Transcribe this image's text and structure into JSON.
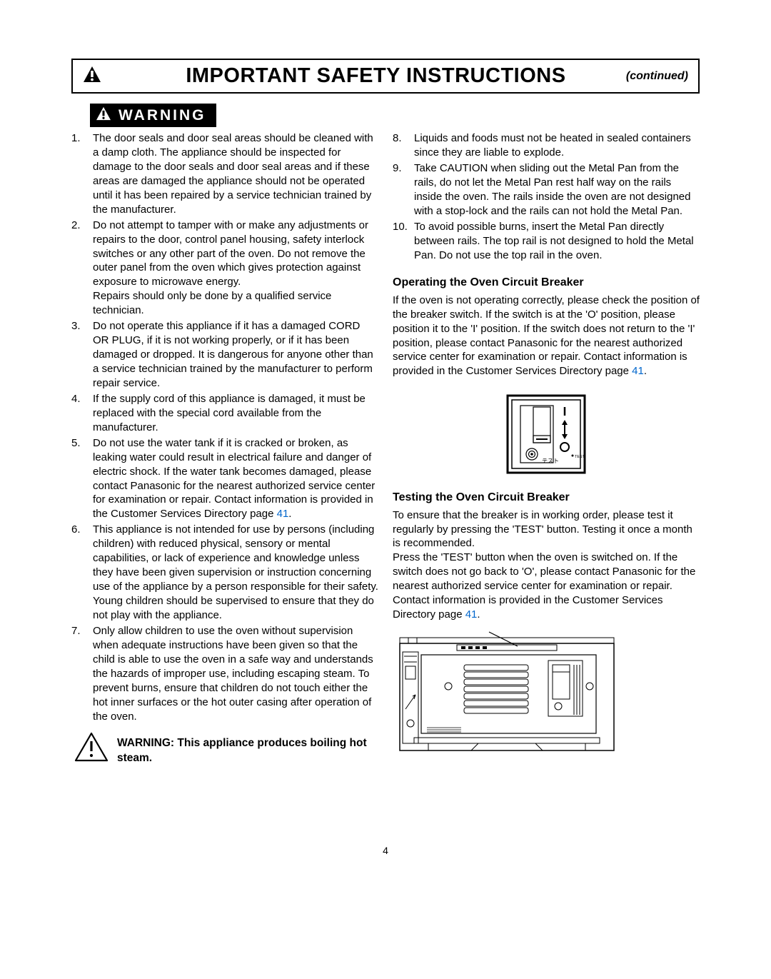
{
  "header": {
    "title": "IMPORTANT SAFETY INSTRUCTIONS",
    "continued": "(continued)"
  },
  "warning_badge": "WARNING",
  "left_list": [
    "The door seals and door seal areas should be cleaned with a damp cloth. The appliance should be inspected for damage to the door seals and door seal areas and if these areas are damaged the appliance should not be operated until it has been repaired by a service technician trained by the manufacturer.",
    "Do not attempt to tamper with or make any adjustments or repairs to the door, control panel housing, safety interlock switches or any other part of the oven. Do not remove the outer panel from the oven which gives protection against exposure to microwave energy.\nRepairs should only be done by a qualified service technician.",
    "Do not operate this appliance if it has a damaged CORD OR PLUG, if it is not working properly, or if it has been damaged or dropped. It is dangerous for anyone other than a service technician trained by the manufacturer to perform repair service.",
    "If the supply cord of this appliance is damaged, it must be replaced with the special cord available from the manufacturer.",
    "Do not use the water tank if it is cracked or broken, as leaking water could result in electrical failure and danger of electric shock. If the water tank becomes damaged, please contact Panasonic for the nearest authorized service center for examination or repair. Contact information is provided in the Customer Services Directory page ",
    "This appliance is not intended for use by persons (including children) with reduced physical, sensory or mental capabilities, or lack of experience and knowledge unless they have been given supervision or instruction concerning use of the appliance by a person responsible for their safety. Young children should be supervised to ensure that they do not play with the appliance.",
    "Only allow children to use the oven without supervision when adequate instructions have been given so that the child is able to use the oven in a safe way and understands the hazards of improper use, including escaping steam. To prevent burns, ensure that children do not touch either the hot inner surfaces or the hot outer casing after operation of the oven."
  ],
  "left_link_page": "41",
  "steam_warning": "WARNING: This appliance produces boiling hot steam.",
  "right_list": [
    {
      "n": "8.",
      "t": "Liquids and foods must not be heated in sealed containers since they are liable to explode."
    },
    {
      "n": "9.",
      "t": "Take CAUTION when sliding out the Metal Pan from the rails, do not let the Metal Pan rest half way on the rails inside the oven. The rails inside the oven are not designed with a stop-lock and the rails can not hold the Metal Pan."
    },
    {
      "n": "10.",
      "t": "To avoid possible burns, insert the Metal Pan directly between rails. The top rail is not designed to hold the Metal Pan. Do not use the top rail in the oven."
    }
  ],
  "operating": {
    "heading": "Operating the Oven Circuit Breaker",
    "body_pre": "If the oven is not operating correctly, please check the position of the breaker switch. If the switch is at the 'O' position, please position it to the 'I' position. If the switch does not return to the 'I' position, please contact Panasonic for the nearest authorized service center for examination or repair. Contact information is provided in the Customer Services Directory page ",
    "link": "41",
    "body_post": "."
  },
  "testing": {
    "heading": "Testing the Oven Circuit Breaker",
    "p1": "To ensure that the breaker is in working order, please test it regularly by pressing the 'TEST' button. Testing it once a month is recommended.",
    "p2_pre": "Press the 'TEST' button when the oven is switched on. If the switch does not go back to 'O', please contact Panasonic for the nearest authorized service center for examination or repair. Contact information is provided in the Customer Services Directory page ",
    "link": "41",
    "p2_post": "."
  },
  "breaker_labels": {
    "test_jp": "テスト",
    "test_en": "TEST"
  },
  "page_number": "4"
}
